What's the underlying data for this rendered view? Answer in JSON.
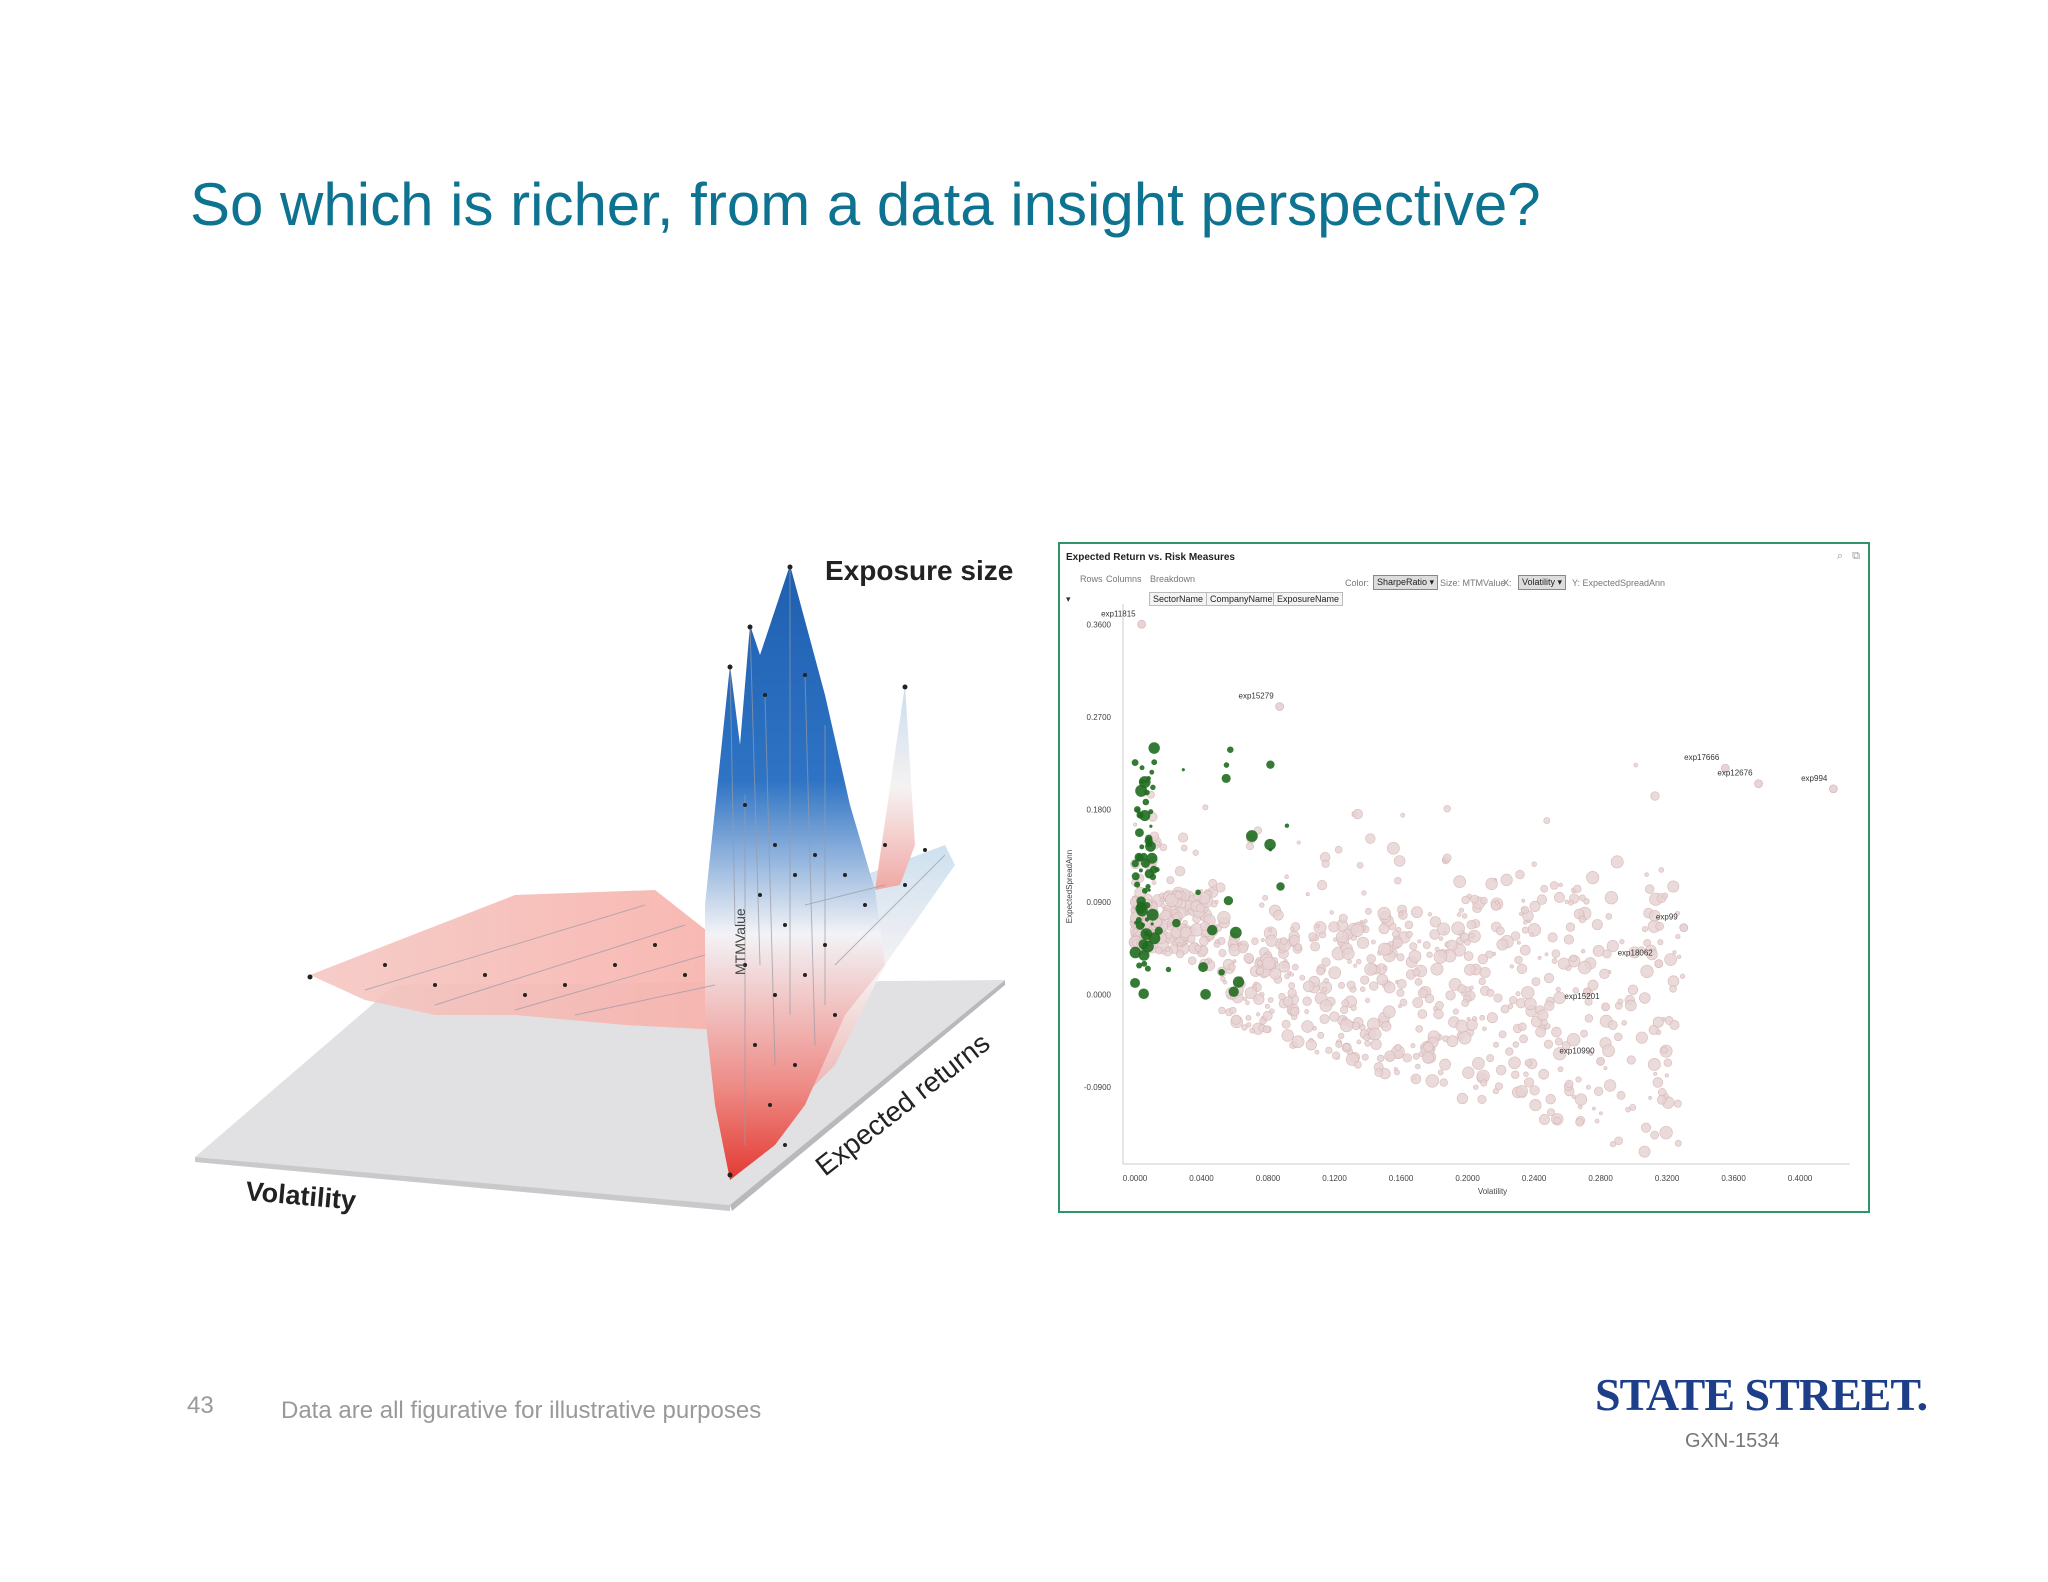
{
  "slide": {
    "title": "So which is richer, from a data insight perspective?",
    "page_number": "43",
    "footnote": "Data are all figurative for illustrative purposes",
    "logo_text": "STATE STREET.",
    "code": "GXN-1534",
    "title_color": "#0e7390",
    "logo_color": "#1d3f8a"
  },
  "surface_chart": {
    "axis_z_label": "Exposure size",
    "axis_x_label": "Volatility",
    "axis_y_label": "Expected returns",
    "vertical_label": "MTMValue",
    "colors": {
      "high": "#1f5fb0",
      "mid": "#f3f3f6",
      "low": "#e33a32",
      "floor": "#e1e1e3"
    }
  },
  "panel": {
    "title": "Expected Return vs. Risk Measures",
    "rows_label": "Rows",
    "columns_label": "Columns",
    "breakdown_label": "Breakdown",
    "breakdown_fields": [
      "SectorName",
      "CompanyName",
      "ExposureName"
    ],
    "color_label": "Color:",
    "color_value": "SharpeRatio",
    "size_label": "Size: MTMValue",
    "x_label": "X:",
    "x_value": "Volatility",
    "y_label": "Y: ExpectedSpreadAnn",
    "expand_glyph": "▾",
    "icons": [
      "search-icon",
      "popout-icon"
    ],
    "border_color": "#2e9469"
  },
  "chart_data": {
    "type": "scatter",
    "title": "Expected Return vs. Risk Measures",
    "xlabel": "Volatility",
    "ylabel": "ExpectedSpreadAnn",
    "x_ticks": [
      "0.0000",
      "0.0400",
      "0.0800",
      "0.1200",
      "0.1600",
      "0.2000",
      "0.2400",
      "0.2800",
      "0.3200",
      "0.3600",
      "0.4000"
    ],
    "y_ticks": [
      "0.3600",
      "0.2700",
      "0.1800",
      "0.0900",
      "0.0000",
      "-0.0900"
    ],
    "xlim": [
      0,
      0.43
    ],
    "ylim": [
      -0.16,
      0.37
    ],
    "colors": {
      "high_sharpe": "#1f6b1f",
      "low_sharpe": "#e8d4d4"
    },
    "labeled_points": [
      {
        "label": "exp11815",
        "x": 0.004,
        "y": 0.36
      },
      {
        "label": "exp15279",
        "x": 0.087,
        "y": 0.28
      },
      {
        "label": "exp17666",
        "x": 0.355,
        "y": 0.22
      },
      {
        "label": "exp12676",
        "x": 0.375,
        "y": 0.205
      },
      {
        "label": "exp994",
        "x": 0.42,
        "y": 0.2
      },
      {
        "label": "exp99",
        "x": 0.33,
        "y": 0.065
      },
      {
        "label": "exp18062",
        "x": 0.315,
        "y": 0.03
      },
      {
        "label": "exp15201",
        "x": 0.283,
        "y": -0.012
      },
      {
        "label": "exp10990",
        "x": 0.28,
        "y": -0.065
      }
    ]
  }
}
